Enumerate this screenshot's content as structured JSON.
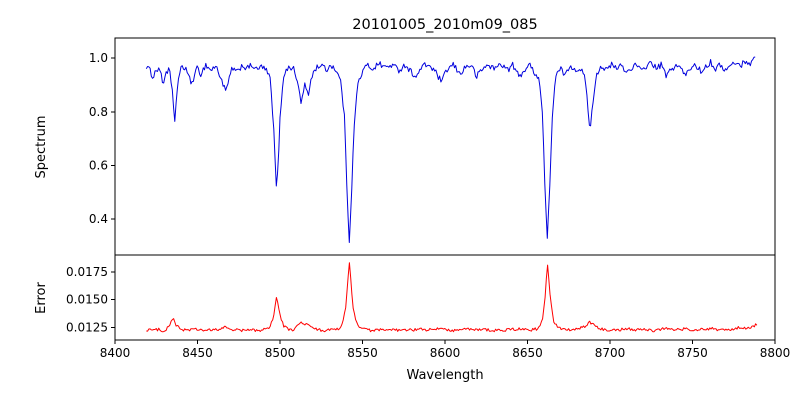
{
  "chart_data": {
    "type": "line",
    "title": "20101005_2010m09_085",
    "xlabel": "Wavelength",
    "grid": false,
    "legend": "none",
    "x_range": [
      8400,
      8800
    ],
    "x_ticks": [
      {
        "v": 8400,
        "label": "8400"
      },
      {
        "v": 8450,
        "label": "8450"
      },
      {
        "v": 8500,
        "label": "8500"
      },
      {
        "v": 8550,
        "label": "8550"
      },
      {
        "v": 8600,
        "label": "8600"
      },
      {
        "v": 8650,
        "label": "8650"
      },
      {
        "v": 8700,
        "label": "8700"
      },
      {
        "v": 8750,
        "label": "8750"
      },
      {
        "v": 8800,
        "label": "8800"
      }
    ],
    "panels": [
      {
        "name": "spectrum",
        "ylabel": "Spectrum",
        "color": "#0000dd",
        "y_range": [
          0.266,
          1.075
        ],
        "y_ticks": [
          {
            "v": 1.0,
            "label": "1.0"
          },
          {
            "v": 0.8,
            "label": "0.8"
          },
          {
            "v": 0.6,
            "label": "0.6"
          },
          {
            "v": 0.4,
            "label": "0.4"
          }
        ],
        "noise_amplitude": 0.011,
        "points": [
          [
            8419,
            0.97
          ],
          [
            8421,
            0.955
          ],
          [
            8423,
            0.93
          ],
          [
            8425,
            0.955
          ],
          [
            8427,
            0.965
          ],
          [
            8429,
            0.9
          ],
          [
            8431,
            0.95
          ],
          [
            8433,
            0.955
          ],
          [
            8435,
            0.86
          ],
          [
            8436,
            0.75
          ],
          [
            8438,
            0.91
          ],
          [
            8440,
            0.96
          ],
          [
            8443,
            0.965
          ],
          [
            8446,
            0.905
          ],
          [
            8448,
            0.93
          ],
          [
            8450,
            0.965
          ],
          [
            8452,
            0.94
          ],
          [
            8455,
            0.975
          ],
          [
            8458,
            0.955
          ],
          [
            8461,
            0.97
          ],
          [
            8464,
            0.93
          ],
          [
            8467,
            0.875
          ],
          [
            8469,
            0.915
          ],
          [
            8471,
            0.965
          ],
          [
            8474,
            0.945
          ],
          [
            8477,
            0.975
          ],
          [
            8480,
            0.96
          ],
          [
            8483,
            0.975
          ],
          [
            8486,
            0.955
          ],
          [
            8489,
            0.97
          ],
          [
            8492,
            0.95
          ],
          [
            8494,
            0.925
          ],
          [
            8496,
            0.76
          ],
          [
            8498,
            0.49
          ],
          [
            8500,
            0.77
          ],
          [
            8502,
            0.935
          ],
          [
            8505,
            0.965
          ],
          [
            8508,
            0.965
          ],
          [
            8511,
            0.9
          ],
          [
            8513,
            0.83
          ],
          [
            8515,
            0.905
          ],
          [
            8517,
            0.855
          ],
          [
            8519,
            0.93
          ],
          [
            8522,
            0.965
          ],
          [
            8525,
            0.975
          ],
          [
            8528,
            0.955
          ],
          [
            8531,
            0.975
          ],
          [
            8534,
            0.955
          ],
          [
            8537,
            0.91
          ],
          [
            8539,
            0.78
          ],
          [
            8541,
            0.45
          ],
          [
            8542,
            0.315
          ],
          [
            8543,
            0.45
          ],
          [
            8545,
            0.75
          ],
          [
            8547,
            0.9
          ],
          [
            8550,
            0.95
          ],
          [
            8553,
            0.975
          ],
          [
            8556,
            0.96
          ],
          [
            8560,
            0.98
          ],
          [
            8564,
            0.965
          ],
          [
            8568,
            0.975
          ],
          [
            8572,
            0.955
          ],
          [
            8576,
            0.975
          ],
          [
            8580,
            0.945
          ],
          [
            8583,
            0.93
          ],
          [
            8586,
            0.97
          ],
          [
            8590,
            0.975
          ],
          [
            8594,
            0.95
          ],
          [
            8598,
            0.91
          ],
          [
            8601,
            0.955
          ],
          [
            8605,
            0.975
          ],
          [
            8609,
            0.94
          ],
          [
            8612,
            0.965
          ],
          [
            8616,
            0.975
          ],
          [
            8619,
            0.93
          ],
          [
            8622,
            0.955
          ],
          [
            8626,
            0.975
          ],
          [
            8630,
            0.96
          ],
          [
            8634,
            0.98
          ],
          [
            8638,
            0.955
          ],
          [
            8641,
            0.975
          ],
          [
            8645,
            0.93
          ],
          [
            8648,
            0.955
          ],
          [
            8651,
            0.975
          ],
          [
            8654,
            0.95
          ],
          [
            8657,
            0.925
          ],
          [
            8659,
            0.8
          ],
          [
            8661,
            0.45
          ],
          [
            8662,
            0.32
          ],
          [
            8663,
            0.45
          ],
          [
            8665,
            0.78
          ],
          [
            8667,
            0.93
          ],
          [
            8670,
            0.96
          ],
          [
            8673,
            0.935
          ],
          [
            8676,
            0.975
          ],
          [
            8679,
            0.955
          ],
          [
            8682,
            0.965
          ],
          [
            8685,
            0.92
          ],
          [
            8687,
            0.79
          ],
          [
            8688,
            0.73
          ],
          [
            8690,
            0.86
          ],
          [
            8692,
            0.945
          ],
          [
            8695,
            0.97
          ],
          [
            8698,
            0.955
          ],
          [
            8701,
            0.975
          ],
          [
            8704,
            0.96
          ],
          [
            8707,
            0.975
          ],
          [
            8710,
            0.945
          ],
          [
            8713,
            0.965
          ],
          [
            8716,
            0.975
          ],
          [
            8719,
            0.95
          ],
          [
            8722,
            0.97
          ],
          [
            8725,
            0.985
          ],
          [
            8728,
            0.96
          ],
          [
            8731,
            0.975
          ],
          [
            8734,
            0.935
          ],
          [
            8737,
            0.955
          ],
          [
            8740,
            0.975
          ],
          [
            8743,
            0.96
          ],
          [
            8746,
            0.935
          ],
          [
            8749,
            0.965
          ],
          [
            8752,
            0.975
          ],
          [
            8755,
            0.95
          ],
          [
            8758,
            0.97
          ],
          [
            8761,
            0.985
          ],
          [
            8764,
            0.96
          ],
          [
            8767,
            0.975
          ],
          [
            8770,
            0.955
          ],
          [
            8773,
            0.97
          ],
          [
            8776,
            0.985
          ],
          [
            8779,
            0.97
          ],
          [
            8782,
            0.99
          ],
          [
            8785,
            0.98
          ],
          [
            8788,
            1.0
          ]
        ]
      },
      {
        "name": "error",
        "ylabel": "Error",
        "color": "#ff0000",
        "y_range": [
          0.0114,
          0.019
        ],
        "y_ticks": [
          {
            "v": 0.0175,
            "label": "0.0175"
          },
          {
            "v": 0.015,
            "label": "0.0150"
          },
          {
            "v": 0.0125,
            "label": "0.0125"
          }
        ],
        "noise_amplitude": 0.00013,
        "points": [
          [
            8419,
            0.01225
          ],
          [
            8421,
            0.0124
          ],
          [
            8423,
            0.01225
          ],
          [
            8425,
            0.0123
          ],
          [
            8427,
            0.01235
          ],
          [
            8429,
            0.01225
          ],
          [
            8431,
            0.0123
          ],
          [
            8433,
            0.0127
          ],
          [
            8435,
            0.0134
          ],
          [
            8437,
            0.0127
          ],
          [
            8440,
            0.01235
          ],
          [
            8444,
            0.0123
          ],
          [
            8448,
            0.01235
          ],
          [
            8452,
            0.0123
          ],
          [
            8456,
            0.01225
          ],
          [
            8460,
            0.0123
          ],
          [
            8464,
            0.01235
          ],
          [
            8467,
            0.0126
          ],
          [
            8470,
            0.01235
          ],
          [
            8474,
            0.0123
          ],
          [
            8478,
            0.01225
          ],
          [
            8482,
            0.0123
          ],
          [
            8486,
            0.01225
          ],
          [
            8490,
            0.0123
          ],
          [
            8494,
            0.0126
          ],
          [
            8496,
            0.0135
          ],
          [
            8498,
            0.0153
          ],
          [
            8500,
            0.0136
          ],
          [
            8502,
            0.0127
          ],
          [
            8505,
            0.01235
          ],
          [
            8508,
            0.0123
          ],
          [
            8511,
            0.0127
          ],
          [
            8513,
            0.013
          ],
          [
            8515,
            0.0127
          ],
          [
            8517,
            0.0129
          ],
          [
            8519,
            0.0125
          ],
          [
            8523,
            0.0123
          ],
          [
            8527,
            0.01225
          ],
          [
            8531,
            0.0123
          ],
          [
            8535,
            0.01235
          ],
          [
            8538,
            0.0128
          ],
          [
            8540,
            0.0145
          ],
          [
            8542,
            0.0185
          ],
          [
            8544,
            0.0146
          ],
          [
            8546,
            0.013
          ],
          [
            8549,
            0.0125
          ],
          [
            8552,
            0.0123
          ],
          [
            8556,
            0.01225
          ],
          [
            8560,
            0.0123
          ],
          [
            8565,
            0.01225
          ],
          [
            8570,
            0.0123
          ],
          [
            8575,
            0.01225
          ],
          [
            8580,
            0.0123
          ],
          [
            8585,
            0.01235
          ],
          [
            8590,
            0.0123
          ],
          [
            8595,
            0.01235
          ],
          [
            8598,
            0.0125
          ],
          [
            8602,
            0.0123
          ],
          [
            8607,
            0.01225
          ],
          [
            8612,
            0.0124
          ],
          [
            8617,
            0.0123
          ],
          [
            8622,
            0.01235
          ],
          [
            8627,
            0.0123
          ],
          [
            8632,
            0.01225
          ],
          [
            8637,
            0.0123
          ],
          [
            8642,
            0.01235
          ],
          [
            8647,
            0.0124
          ],
          [
            8652,
            0.0123
          ],
          [
            8656,
            0.0124
          ],
          [
            8659,
            0.0131
          ],
          [
            8661,
            0.0155
          ],
          [
            8662,
            0.0185
          ],
          [
            8664,
            0.015
          ],
          [
            8666,
            0.013
          ],
          [
            8669,
            0.0125
          ],
          [
            8672,
            0.0124
          ],
          [
            8675,
            0.0123
          ],
          [
            8678,
            0.01235
          ],
          [
            8681,
            0.0124
          ],
          [
            8685,
            0.0126
          ],
          [
            8688,
            0.013
          ],
          [
            8691,
            0.0126
          ],
          [
            8694,
            0.0124
          ],
          [
            8698,
            0.0123
          ],
          [
            8702,
            0.01235
          ],
          [
            8706,
            0.0123
          ],
          [
            8710,
            0.01245
          ],
          [
            8714,
            0.0123
          ],
          [
            8718,
            0.01235
          ],
          [
            8722,
            0.0123
          ],
          [
            8726,
            0.01225
          ],
          [
            8730,
            0.0123
          ],
          [
            8734,
            0.0125
          ],
          [
            8738,
            0.0123
          ],
          [
            8742,
            0.01235
          ],
          [
            8746,
            0.0124
          ],
          [
            8750,
            0.0123
          ],
          [
            8754,
            0.01235
          ],
          [
            8758,
            0.0123
          ],
          [
            8762,
            0.0124
          ],
          [
            8766,
            0.0123
          ],
          [
            8770,
            0.01235
          ],
          [
            8774,
            0.0123
          ],
          [
            8778,
            0.0125
          ],
          [
            8782,
            0.0124
          ],
          [
            8786,
            0.0126
          ],
          [
            8789,
            0.0128
          ]
        ]
      }
    ]
  }
}
